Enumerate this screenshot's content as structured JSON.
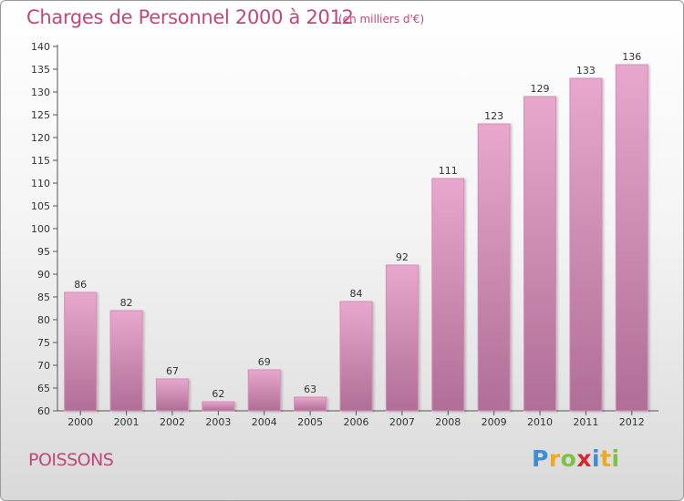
{
  "title": "Charges de Personnel 2000 à 2012",
  "subtitle": "(en milliers d'€)",
  "commune": "POISSONS",
  "logo": {
    "letters": [
      {
        "char": "P",
        "color": "#3b8fd6"
      },
      {
        "char": "r",
        "color": "#f0a81e"
      },
      {
        "char": "o",
        "color": "#7cc242"
      },
      {
        "char": "x",
        "color": "#d9262e"
      },
      {
        "char": "i",
        "color": "#3b8fd6"
      },
      {
        "char": "t",
        "color": "#f0a81e"
      },
      {
        "char": "i",
        "color": "#7cc242"
      }
    ]
  },
  "colors": {
    "bar_light": "#e8a7cc",
    "bar_dark": "#b06e96",
    "title": "#c2467c",
    "axis": "#555555"
  },
  "chart_data": {
    "type": "bar",
    "title": "Charges de Personnel 2000 à 2012",
    "subtitle": "(en milliers d'€)",
    "xlabel": "",
    "ylabel": "",
    "categories": [
      "2000",
      "2001",
      "2002",
      "2003",
      "2004",
      "2005",
      "2006",
      "2007",
      "2008",
      "2009",
      "2010",
      "2011",
      "2012"
    ],
    "values": [
      86,
      82,
      67,
      62,
      69,
      63,
      84,
      92,
      111,
      123,
      129,
      133,
      136
    ],
    "ylim": [
      60,
      140
    ],
    "yticks": [
      60,
      65,
      70,
      75,
      80,
      85,
      90,
      95,
      100,
      105,
      110,
      115,
      120,
      125,
      130,
      135,
      140
    ],
    "grid": false,
    "legend": "none"
  }
}
